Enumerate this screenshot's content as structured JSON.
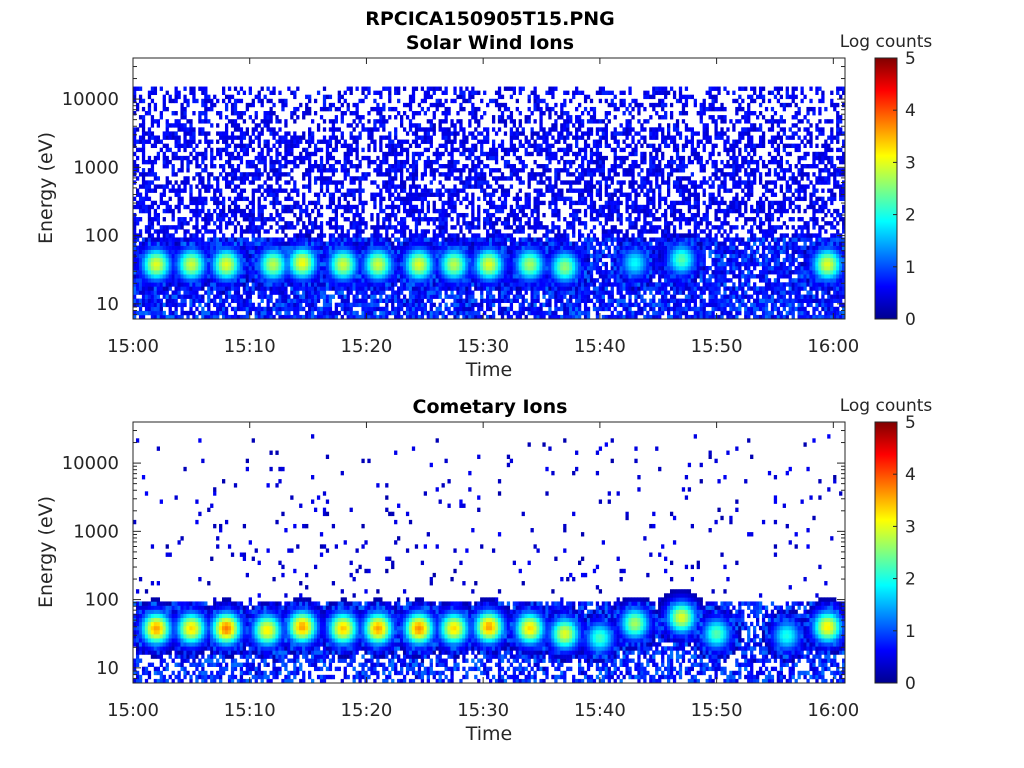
{
  "figure": {
    "title": "RPCICA150905T15.PNG"
  },
  "colormap": [
    "#00008f",
    "#0000ff",
    "#0080ff",
    "#00ffff",
    "#80ff80",
    "#ffff00",
    "#ff8000",
    "#ff0000",
    "#800000"
  ],
  "chart_data": [
    {
      "type": "heatmap",
      "title": "Solar Wind Ions",
      "xlabel": "Time",
      "ylabel": "Energy (eV)",
      "yscale": "log",
      "ylim": [
        6,
        40000
      ],
      "xlim": [
        "15:00",
        "16:01"
      ],
      "xticks": [
        "15:00",
        "15:10",
        "15:20",
        "15:30",
        "15:40",
        "15:50",
        "16:00"
      ],
      "yticks": [
        "10",
        "100",
        "1000",
        "10000"
      ],
      "colorbar": {
        "label": "Log counts",
        "ticks": [
          "0",
          "1",
          "2",
          "3",
          "4",
          "5"
        ],
        "range": [
          0,
          5
        ]
      },
      "background_noise": {
        "energy_range_eV": [
          6,
          15000
        ],
        "typical_log_counts": 0.3,
        "density": "high"
      },
      "peaks": [
        {
          "time": "15:02",
          "energy_eV": 38,
          "log_counts": 3.0
        },
        {
          "time": "15:05",
          "energy_eV": 38,
          "log_counts": 2.9
        },
        {
          "time": "15:08",
          "energy_eV": 38,
          "log_counts": 3.0
        },
        {
          "time": "15:12",
          "energy_eV": 38,
          "log_counts": 2.8
        },
        {
          "time": "15:14.5",
          "energy_eV": 40,
          "log_counts": 3.1
        },
        {
          "time": "15:18",
          "energy_eV": 38,
          "log_counts": 2.9
        },
        {
          "time": "15:21",
          "energy_eV": 38,
          "log_counts": 2.9
        },
        {
          "time": "15:24.5",
          "energy_eV": 38,
          "log_counts": 3.0
        },
        {
          "time": "15:27.5",
          "energy_eV": 38,
          "log_counts": 2.8
        },
        {
          "time": "15:30.5",
          "energy_eV": 38,
          "log_counts": 3.0
        },
        {
          "time": "15:34",
          "energy_eV": 38,
          "log_counts": 2.7
        },
        {
          "time": "15:37",
          "energy_eV": 35,
          "log_counts": 2.6
        },
        {
          "time": "15:43",
          "energy_eV": 40,
          "log_counts": 1.9
        },
        {
          "time": "15:47",
          "energy_eV": 45,
          "log_counts": 2.3
        },
        {
          "time": "15:59.5",
          "energy_eV": 38,
          "log_counts": 3.0
        }
      ]
    },
    {
      "type": "heatmap",
      "title": "Cometary Ions",
      "xlabel": "Time",
      "ylabel": "Energy (eV)",
      "yscale": "log",
      "ylim": [
        6,
        40000
      ],
      "xlim": [
        "15:00",
        "16:01"
      ],
      "xticks": [
        "15:00",
        "15:10",
        "15:20",
        "15:30",
        "15:40",
        "15:50",
        "16:00"
      ],
      "yticks": [
        "10",
        "100",
        "1000",
        "10000"
      ],
      "colorbar": {
        "label": "Log counts",
        "ticks": [
          "0",
          "1",
          "2",
          "3",
          "4",
          "5"
        ],
        "range": [
          0,
          5
        ]
      },
      "background_noise": {
        "energy_range_eV": [
          6,
          25000
        ],
        "typical_log_counts": 0.1,
        "density": "sparse"
      },
      "peaks": [
        {
          "time": "15:02",
          "energy_eV": 38,
          "log_counts": 3.6
        },
        {
          "time": "15:05",
          "energy_eV": 38,
          "log_counts": 3.3
        },
        {
          "time": "15:08",
          "energy_eV": 38,
          "log_counts": 3.8
        },
        {
          "time": "15:11.5",
          "energy_eV": 36,
          "log_counts": 3.2
        },
        {
          "time": "15:14.5",
          "energy_eV": 40,
          "log_counts": 3.6
        },
        {
          "time": "15:18",
          "energy_eV": 38,
          "log_counts": 3.4
        },
        {
          "time": "15:21",
          "energy_eV": 38,
          "log_counts": 3.6
        },
        {
          "time": "15:24.5",
          "energy_eV": 38,
          "log_counts": 3.7
        },
        {
          "time": "15:27.5",
          "energy_eV": 38,
          "log_counts": 3.3
        },
        {
          "time": "15:30.5",
          "energy_eV": 40,
          "log_counts": 3.6
        },
        {
          "time": "15:34",
          "energy_eV": 38,
          "log_counts": 3.3
        },
        {
          "time": "15:37",
          "energy_eV": 32,
          "log_counts": 3.0
        },
        {
          "time": "15:40",
          "energy_eV": 28,
          "log_counts": 2.2
        },
        {
          "time": "15:43",
          "energy_eV": 45,
          "log_counts": 2.7
        },
        {
          "time": "15:47",
          "energy_eV": 55,
          "log_counts": 3.0
        },
        {
          "time": "15:50",
          "energy_eV": 32,
          "log_counts": 2.3
        },
        {
          "time": "15:56",
          "energy_eV": 30,
          "log_counts": 2.0
        },
        {
          "time": "15:59.5",
          "energy_eV": 40,
          "log_counts": 3.2
        }
      ]
    }
  ]
}
